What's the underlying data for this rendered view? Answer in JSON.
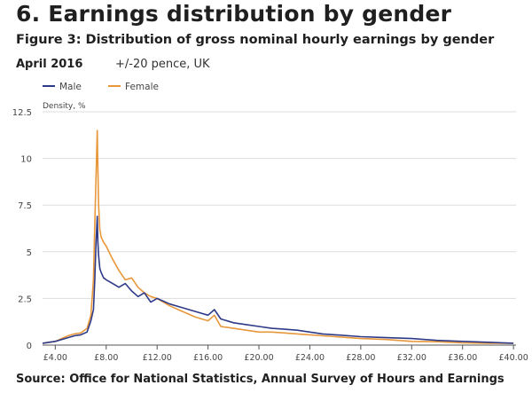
{
  "section_title": "6.  Earnings distribution by gender",
  "figure_title": "Figure 3: Distribution of gross nominal hourly earnings by gender",
  "date_label": "April 2016",
  "unit_label": "+/-20 pence, UK",
  "source": "Source: Office for National Statistics, Annual Survey of Hours and Earnings",
  "colors": {
    "male": "#2e3a87",
    "female": "#e8973a",
    "grid": "#dddddd",
    "axis": "#555555",
    "text": "#444444"
  },
  "chart_data": {
    "type": "line",
    "title": "Figure 3: Distribution of gross nominal hourly earnings by gender",
    "ylabel": "Density, %",
    "xlabel": "",
    "xlim": [
      3.0,
      40.2
    ],
    "ylim": [
      0,
      12.5
    ],
    "grid": "horizontal",
    "legend": "top-left",
    "x_ticks": [
      {
        "value": 4,
        "label": "£4.00"
      },
      {
        "value": 8,
        "label": "£8.00"
      },
      {
        "value": 12,
        "label": "£12.00"
      },
      {
        "value": 16,
        "label": "£16.00"
      },
      {
        "value": 20,
        "label": "£20.00"
      },
      {
        "value": 24,
        "label": "£24.00"
      },
      {
        "value": 28,
        "label": "£28.00"
      },
      {
        "value": 32,
        "label": "£32.00"
      },
      {
        "value": 36,
        "label": "£36.00"
      },
      {
        "value": 40,
        "label": "£40.00"
      }
    ],
    "y_ticks": [
      {
        "value": 0,
        "label": "0"
      },
      {
        "value": 2.5,
        "label": "2.5"
      },
      {
        "value": 5,
        "label": "5"
      },
      {
        "value": 7.5,
        "label": "7.5"
      },
      {
        "value": 10,
        "label": "10"
      },
      {
        "value": 12.5,
        "label": "12.5"
      }
    ],
    "series": [
      {
        "name": "Male",
        "color": "#2e3a87",
        "x": [
          3.0,
          4.0,
          5.0,
          5.5,
          6.0,
          6.5,
          6.8,
          7.0,
          7.1,
          7.2,
          7.3,
          7.35,
          7.4,
          7.5,
          7.6,
          7.8,
          8.0,
          8.5,
          9.0,
          9.5,
          10.0,
          10.5,
          11.0,
          11.5,
          12.0,
          13.0,
          14.0,
          15.0,
          16.0,
          16.5,
          17.0,
          18.0,
          19.0,
          20.0,
          21.0,
          22.0,
          23.0,
          24.0,
          25.0,
          26.0,
          28.0,
          30.0,
          32.0,
          34.0,
          36.0,
          38.0,
          40.0
        ],
        "y": [
          0.1,
          0.2,
          0.4,
          0.5,
          0.55,
          0.7,
          1.3,
          1.9,
          3.5,
          5.5,
          6.9,
          5.5,
          4.8,
          4.1,
          3.9,
          3.6,
          3.5,
          3.3,
          3.1,
          3.3,
          2.9,
          2.6,
          2.8,
          2.3,
          2.5,
          2.2,
          2.0,
          1.8,
          1.6,
          1.9,
          1.4,
          1.2,
          1.1,
          1.0,
          0.9,
          0.85,
          0.8,
          0.7,
          0.6,
          0.55,
          0.45,
          0.4,
          0.35,
          0.25,
          0.2,
          0.15,
          0.1
        ]
      },
      {
        "name": "Female",
        "color": "#e8973a",
        "x": [
          3.0,
          4.0,
          5.0,
          5.5,
          6.0,
          6.5,
          6.8,
          7.0,
          7.1,
          7.2,
          7.3,
          7.35,
          7.4,
          7.5,
          7.6,
          7.8,
          8.0,
          8.5,
          9.0,
          9.5,
          10.0,
          10.5,
          11.0,
          11.5,
          12.0,
          13.0,
          14.0,
          15.0,
          16.0,
          16.5,
          17.0,
          18.0,
          19.0,
          20.0,
          21.0,
          22.0,
          23.0,
          24.0,
          25.0,
          26.0,
          28.0,
          30.0,
          32.0,
          34.0,
          36.0,
          38.0,
          40.0
        ],
        "y": [
          0.1,
          0.2,
          0.5,
          0.6,
          0.65,
          0.9,
          1.6,
          3.5,
          6.5,
          9.0,
          11.5,
          9.5,
          7.5,
          6.2,
          5.8,
          5.5,
          5.3,
          4.6,
          4.0,
          3.5,
          3.6,
          3.1,
          2.8,
          2.6,
          2.5,
          2.1,
          1.8,
          1.5,
          1.3,
          1.6,
          1.0,
          0.9,
          0.8,
          0.7,
          0.7,
          0.65,
          0.6,
          0.55,
          0.5,
          0.45,
          0.35,
          0.3,
          0.2,
          0.18,
          0.12,
          0.1,
          0.1
        ]
      }
    ]
  }
}
